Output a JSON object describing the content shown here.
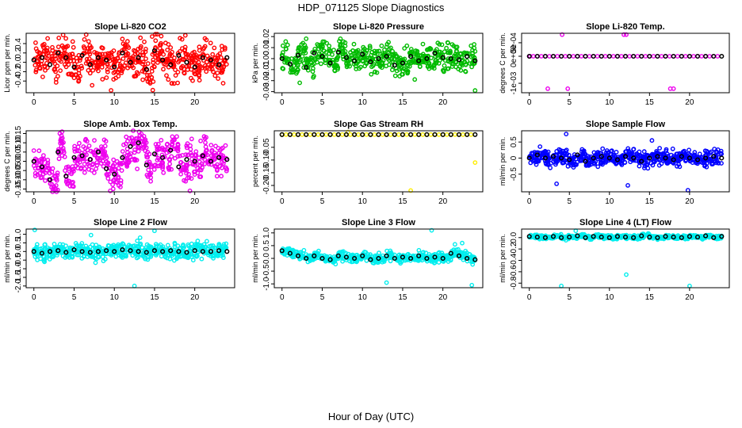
{
  "figure": {
    "title": "HDP_071125  Slope Diagnostics",
    "xlabel": "Hour of Day (UTC)"
  },
  "chart_data": [
    {
      "type": "scatter",
      "title": "Slope Li-820 CO2",
      "ylabel": "Licor ppm per min.",
      "color": "#ff0000",
      "xlim": [
        0,
        24
      ],
      "ylim": [
        -0.65,
        0.62
      ],
      "xticks": [
        0,
        5,
        10,
        15,
        20
      ],
      "yticks": [
        -0.4,
        -0.2,
        0.0,
        0.2,
        0.4
      ],
      "ytick_labels": [
        "-0.4",
        "-0.2",
        "0.0",
        "0.2",
        "0.4"
      ],
      "spread": 0.55,
      "hourly": [
        0.05,
        0.1,
        -0.05,
        0.2,
        0.1,
        -0.1,
        0.15,
        -0.05,
        0.1,
        0.05,
        -0.1,
        0.2,
        0.0,
        0.1,
        -0.15,
        0.25,
        0.05,
        -0.05,
        0.15,
        0.0,
        -0.1,
        0.1,
        0.05,
        -0.05,
        0.1
      ],
      "outliers": [
        [
          14.7,
          0.55
        ],
        [
          15.1,
          0.6
        ],
        [
          9.6,
          -0.6
        ]
      ]
    },
    {
      "type": "scatter",
      "title": "Slope Li-820 Pressure",
      "ylabel": "kPa per min.",
      "color": "#00bb00",
      "xlim": [
        0,
        24
      ],
      "ylim": [
        -0.031,
        0.023
      ],
      "xticks": [
        0,
        5,
        10,
        15,
        20
      ],
      "yticks": [
        -0.03,
        -0.02,
        -0.01,
        0.0,
        0.01,
        0.02
      ],
      "ytick_labels": [
        "-0.03",
        "-0.02",
        "-0.01",
        "0.00",
        "0.01",
        "0.02"
      ],
      "spread": 0.018,
      "hourly": [
        0.0,
        -0.005,
        0.003,
        -0.008,
        0.005,
        0.002,
        -0.004,
        0.006,
        0.001,
        -0.002,
        0.004,
        -0.003,
        0.0,
        0.002,
        -0.006,
        -0.004,
        0.002,
        -0.002,
        0.0,
        0.005,
        0.001,
        0.0,
        -0.001,
        0.002,
        -0.002
      ],
      "outliers": [
        [
          3.0,
          0.018
        ],
        [
          16.5,
          -0.019
        ],
        [
          24.0,
          -0.029
        ],
        [
          2.2,
          -0.022
        ]
      ]
    },
    {
      "type": "scatter",
      "title": "Slope Li-820 Temp.",
      "ylabel": "degrees C per min.",
      "color": "#ee00ee",
      "xlim": [
        0,
        24
      ],
      "ylim": [
        -0.00135,
        0.00085
      ],
      "xticks": [
        0,
        5,
        10,
        15,
        20
      ],
      "yticks": [
        -0.001,
        0.0,
        0.0005
      ],
      "ytick_labels": [
        "-1e-03",
        "0e+00",
        "5e-04"
      ],
      "spread": 0.0,
      "hourly": [
        0,
        0,
        0,
        0,
        0,
        0,
        0,
        0,
        0,
        0,
        0,
        0,
        0,
        0,
        0,
        0,
        0,
        0,
        0,
        0,
        0,
        0,
        0,
        0,
        0
      ],
      "outliers": [
        [
          4.1,
          0.0008
        ],
        [
          11.8,
          0.0008
        ],
        [
          12.1,
          0.0008
        ],
        [
          2.3,
          -0.0012
        ],
        [
          4.8,
          -0.0012
        ],
        [
          17.6,
          -0.0012
        ],
        [
          18.0,
          -0.0012
        ],
        [
          0.1,
          0.0
        ]
      ]
    },
    {
      "type": "scatter",
      "title": "Slope Amb. Box Temp.",
      "ylabel": "degrees C per min.",
      "color": "#ee00ee",
      "xlim": [
        0,
        24
      ],
      "ylim": [
        -0.165,
        0.165
      ],
      "xticks": [
        0,
        5,
        10,
        15,
        20
      ],
      "yticks": [
        -0.15,
        -0.1,
        -0.05,
        0.0,
        0.05,
        0.1,
        0.15
      ],
      "ytick_labels": [
        "-0.15",
        "-0.10",
        "-0.05",
        "0.00",
        "0.05",
        "0.10",
        "0.15"
      ],
      "spread": 0.14,
      "hourly": [
        0.0,
        -0.03,
        -0.1,
        0.05,
        -0.08,
        0.02,
        0.03,
        0.01,
        0.05,
        -0.04,
        -0.07,
        0.02,
        0.08,
        0.1,
        -0.02,
        0.04,
        0.02,
        0.06,
        -0.03,
        0.01,
        0.0,
        0.03,
        0.0,
        0.02,
        0.01
      ],
      "outliers": [
        [
          9.5,
          -0.16
        ],
        [
          19.4,
          -0.16
        ],
        [
          3.5,
          0.16
        ]
      ]
    },
    {
      "type": "scatter",
      "title": "Slope Gas Stream RH",
      "ylabel": "percent per min.",
      "color": "#ffee00",
      "xlim": [
        0,
        24
      ],
      "ylim": [
        -0.225,
        0.015
      ],
      "xticks": [
        0,
        5,
        10,
        15,
        20
      ],
      "yticks": [
        -0.2,
        -0.15,
        -0.1,
        -0.05
      ],
      "ytick_labels": [
        "-0.20",
        "-0.15",
        "-0.10",
        "-0.05"
      ],
      "spread": 0.0,
      "hourly": [
        0,
        0,
        0,
        0,
        0,
        0,
        0,
        0,
        0,
        0,
        0,
        0,
        0,
        0,
        0,
        0,
        0,
        0,
        0,
        0,
        0,
        0,
        0,
        0,
        0
      ],
      "outliers": [
        [
          8.2,
          0.01
        ],
        [
          16.0,
          -0.22
        ],
        [
          24.0,
          -0.11
        ],
        [
          0.0,
          0.0
        ]
      ]
    },
    {
      "type": "scatter",
      "title": "Slope Sample Flow",
      "ylabel": "ml/min per min.",
      "color": "#0000ff",
      "xlim": [
        0,
        24
      ],
      "ylim": [
        -1.05,
        0.85
      ],
      "xticks": [
        0,
        5,
        10,
        15,
        20
      ],
      "yticks": [
        -0.5,
        0.0,
        0.5
      ],
      "ytick_labels": [
        "-0.5",
        "0",
        "0.5"
      ],
      "spread": 0.35,
      "hourly": [
        0.0,
        0.1,
        0.0,
        0.05,
        0.0,
        -0.05,
        0.1,
        -0.1,
        0.0,
        0.05,
        0.0,
        -0.05,
        0.05,
        0.0,
        -0.1,
        0.0,
        0.05,
        0.0,
        -0.05,
        0.05,
        0.0,
        -0.05,
        0.0,
        0.05,
        0.0
      ],
      "outliers": [
        [
          19.8,
          -1.0
        ],
        [
          4.6,
          0.75
        ],
        [
          3.4,
          -0.8
        ],
        [
          12.3,
          -0.85
        ],
        [
          15.3,
          0.55
        ]
      ]
    },
    {
      "type": "scatter",
      "title": "Slope Line 2 Flow",
      "ylabel": "ml/min per min.",
      "color": "#00eeee",
      "xlim": [
        0,
        24
      ],
      "ylim": [
        -2.1,
        1.3
      ],
      "xticks": [
        0,
        5,
        10,
        15,
        20
      ],
      "yticks": [
        -2.0,
        -1.5,
        -1.0,
        -0.5,
        0.0,
        0.5,
        1.0
      ],
      "ytick_labels": [
        "-2.0",
        "-1.5",
        "-1.0",
        "-0.5",
        "0.0",
        "0.5",
        "1.0"
      ],
      "spread": 0.7,
      "hourly": [
        0.0,
        -0.1,
        0.0,
        0.05,
        -0.05,
        0.1,
        0.0,
        -0.05,
        0.0,
        0.05,
        0.0,
        0.1,
        0.05,
        0.0,
        -0.05,
        0.05,
        0.0,
        0.05,
        0.0,
        -0.05,
        0.05,
        0.0,
        0.0,
        0.05,
        0.0
      ],
      "outliers": [
        [
          0.1,
          1.25
        ],
        [
          15.0,
          1.2
        ],
        [
          7.1,
          0.95
        ],
        [
          12.5,
          -2.0
        ],
        [
          13.2,
          0.8
        ]
      ]
    },
    {
      "type": "scatter",
      "title": "Slope Line 3 Flow",
      "ylabel": "ml/min per min.",
      "color": "#00eeee",
      "xlim": [
        0,
        24
      ],
      "ylim": [
        -1.15,
        1.15
      ],
      "xticks": [
        0,
        5,
        10,
        15,
        20
      ],
      "yticks": [
        -1.0,
        -0.5,
        0.0,
        0.5,
        1.0
      ],
      "ytick_labels": [
        "-1.0",
        "-0.5",
        "0.0",
        "0.5",
        "1.0"
      ],
      "spread": 0.25,
      "hourly": [
        0.3,
        0.2,
        0.1,
        0.0,
        0.1,
        0.0,
        -0.05,
        0.1,
        0.05,
        0.0,
        0.1,
        -0.05,
        0.0,
        0.1,
        0.0,
        0.05,
        0.0,
        0.1,
        0.0,
        0.05,
        0.0,
        0.2,
        0.1,
        0.0,
        -0.05
      ],
      "outliers": [
        [
          18.6,
          1.1
        ],
        [
          23.6,
          -1.05
        ],
        [
          13.0,
          -0.95
        ],
        [
          21.5,
          0.55
        ],
        [
          22.4,
          0.6
        ]
      ]
    },
    {
      "type": "scatter",
      "title": "Slope Line 4 (LT) Flow",
      "ylabel": "ml/min per min.",
      "color": "#00eeee",
      "xlim": [
        0,
        24
      ],
      "ylim": [
        -0.88,
        0.15
      ],
      "xticks": [
        0,
        5,
        10,
        15,
        20
      ],
      "yticks": [
        -0.8,
        -0.6,
        -0.4,
        -0.2,
        0.0
      ],
      "ytick_labels": [
        "-0.8",
        "-0.6",
        "-0.4",
        "-0.2",
        "0.0"
      ],
      "spread": 0.05,
      "hourly": [
        0.02,
        0.01,
        0.0,
        0.02,
        0.0,
        0.01,
        0.03,
        0.0,
        0.02,
        0.01,
        0.0,
        0.02,
        0.01,
        0.0,
        0.03,
        0.01,
        0.0,
        0.02,
        0.01,
        0.0,
        0.02,
        0.01,
        0.03,
        0.0,
        0.02
      ],
      "outliers": [
        [
          4.0,
          -0.85
        ],
        [
          12.1,
          -0.65
        ],
        [
          20.0,
          -0.85
        ],
        [
          5.8,
          0.12
        ]
      ]
    }
  ]
}
